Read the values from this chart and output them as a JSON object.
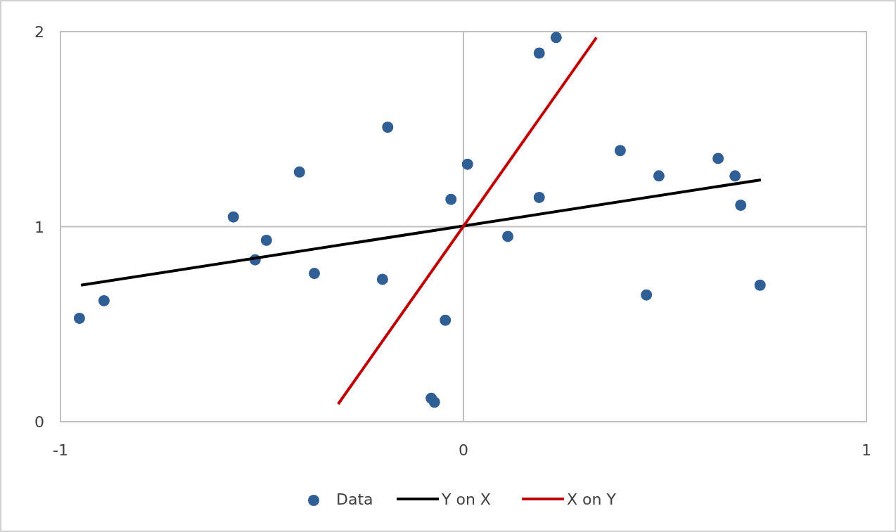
{
  "chart_data": {
    "type": "scatter",
    "xlim": [
      -1,
      1
    ],
    "xticks": [
      -1,
      0,
      1
    ],
    "ylim": [
      0,
      2
    ],
    "yticks": [
      0,
      1,
      2
    ],
    "grid": true,
    "legend": "bottom",
    "series": [
      {
        "name": "Data",
        "type": "scatter",
        "marker": "circle",
        "color": "#2f5f95",
        "x": [
          -0.953,
          -0.892,
          -0.571,
          -0.517,
          -0.489,
          -0.407,
          -0.37,
          -0.201,
          -0.188,
          -0.08,
          -0.072,
          -0.045,
          -0.031,
          0.01,
          0.11,
          0.188,
          0.188,
          0.23,
          0.389,
          0.454,
          0.485,
          0.632,
          0.674,
          0.688,
          0.736
        ],
        "values": [
          0.53,
          0.62,
          1.05,
          0.83,
          0.93,
          1.28,
          0.76,
          0.73,
          1.51,
          0.12,
          0.1,
          0.52,
          1.14,
          1.32,
          0.95,
          1.89,
          1.15,
          1.97,
          1.39,
          0.65,
          1.26,
          1.35,
          1.26,
          1.11,
          0.7
        ]
      },
      {
        "name": "Y on X",
        "type": "line",
        "marker": "none",
        "line_style": "solid",
        "color": "#000000",
        "x": [
          -0.949,
          0.738
        ],
        "values": [
          0.7,
          1.24
        ]
      },
      {
        "name": "X on Y",
        "type": "line",
        "marker": "none",
        "line_style": "solid",
        "color": "#c00000",
        "x": [
          -0.311,
          0.33
        ],
        "values": [
          0.09,
          1.97
        ]
      }
    ]
  }
}
